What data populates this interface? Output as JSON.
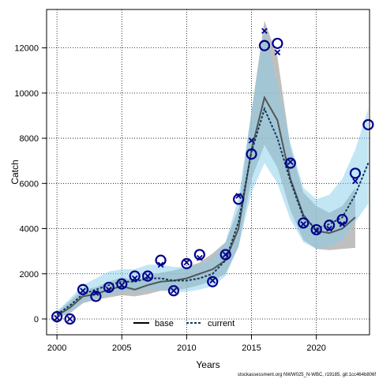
{
  "chart_data": {
    "type": "line",
    "xlabel": "Years",
    "ylabel": "Catch",
    "xlim": [
      1999.2,
      2024.1
    ],
    "ylim": [
      -700,
      13700
    ],
    "x_ticks": [
      2000,
      2005,
      2010,
      2015,
      2020
    ],
    "y_ticks": [
      0,
      2000,
      4000,
      6000,
      8000,
      10000,
      12000
    ],
    "grid": true,
    "legend_position": "bottom-center",
    "colors": {
      "base_line": "#555555",
      "base_band": "#a9a9a9",
      "current_line": "#0d3b5e",
      "current_band": "#87ceeb",
      "markers": "#00008b"
    },
    "series": [
      {
        "name": "base",
        "style": "solid",
        "x": [
          2000,
          2001,
          2002,
          2003,
          2004,
          2005,
          2006,
          2007,
          2008,
          2009,
          2010,
          2011,
          2012,
          2013,
          2014,
          2015,
          2016,
          2017,
          2018,
          2019,
          2020,
          2021,
          2022,
          2023
        ],
        "values": [
          150,
          500,
          1000,
          1100,
          1300,
          1450,
          1300,
          1500,
          1650,
          1700,
          1800,
          2000,
          2200,
          2600,
          4000,
          7500,
          9800,
          8800,
          6200,
          4600,
          3900,
          3800,
          4000,
          4500
        ],
        "lower": [
          50,
          250,
          700,
          850,
          950,
          1050,
          1000,
          1100,
          1250,
          1250,
          1350,
          1500,
          1700,
          2000,
          3200,
          6200,
          7700,
          6700,
          4800,
          3500,
          3100,
          3050,
          3100,
          3150
        ],
        "upper": [
          300,
          800,
          1300,
          1400,
          1650,
          1850,
          1700,
          1900,
          2050,
          2150,
          2300,
          2500,
          2900,
          3400,
          4900,
          9200,
          13200,
          11600,
          7600,
          5600,
          5000,
          4700,
          5000,
          5800
        ]
      },
      {
        "name": "current",
        "style": "dashed",
        "x": [
          2000,
          2001,
          2002,
          2003,
          2004,
          2005,
          2006,
          2007,
          2008,
          2009,
          2010,
          2011,
          2012,
          2013,
          2014,
          2015,
          2016,
          2017,
          2018,
          2019,
          2020,
          2021,
          2022,
          2023,
          2024
        ],
        "values": [
          200,
          600,
          1100,
          1300,
          1500,
          1650,
          1650,
          1800,
          1800,
          1700,
          1700,
          1800,
          2000,
          2600,
          4300,
          7400,
          9300,
          8000,
          6100,
          4500,
          4000,
          4200,
          4500,
          5500,
          6900
        ],
        "lower": [
          50,
          300,
          750,
          900,
          1050,
          1200,
          1200,
          1300,
          1300,
          1200,
          1200,
          1300,
          1450,
          1900,
          3200,
          5600,
          6900,
          6000,
          4400,
          3400,
          3100,
          3200,
          3500,
          4300,
          5100
        ],
        "upper": [
          350,
          900,
          1500,
          1800,
          2100,
          2200,
          2200,
          2400,
          2400,
          2300,
          2300,
          2400,
          2700,
          3400,
          5400,
          9200,
          12800,
          10400,
          7800,
          5800,
          5300,
          5500,
          6200,
          7500,
          9300
        ]
      }
    ],
    "observed_circles": {
      "x": [
        2000,
        2001,
        2002,
        2003,
        2004,
        2005,
        2006,
        2007,
        2008,
        2009,
        2010,
        2011,
        2012,
        2013,
        2014,
        2015,
        2016,
        2017,
        2018,
        2019,
        2020,
        2021,
        2022,
        2023,
        2024
      ],
      "values": [
        100,
        0,
        1300,
        1000,
        1400,
        1550,
        1900,
        1900,
        2600,
        1250,
        2450,
        2850,
        1650,
        2850,
        5300,
        7300,
        12100,
        12200,
        6900,
        4250,
        3950,
        4150,
        4400,
        6450,
        8600
      ]
    },
    "observed_crosses": {
      "x": [
        2000,
        2001,
        2002,
        2003,
        2004,
        2005,
        2006,
        2007,
        2008,
        2009,
        2010,
        2011,
        2012,
        2013,
        2014,
        2015,
        2016,
        2017,
        2018,
        2019,
        2020,
        2021,
        2022,
        2023
      ],
      "values": [
        50,
        0,
        1250,
        1150,
        1300,
        1500,
        1800,
        1900,
        2400,
        1250,
        2500,
        2700,
        1700,
        2850,
        5450,
        7900,
        12750,
        11800,
        6950,
        4200,
        3900,
        4000,
        4200,
        6100
      ]
    }
  },
  "legend": {
    "base_label": "base",
    "current_label": "current"
  },
  "footer": "stockassessment.org NWW025_N-WBC, r19185, git:1cc464b806f"
}
